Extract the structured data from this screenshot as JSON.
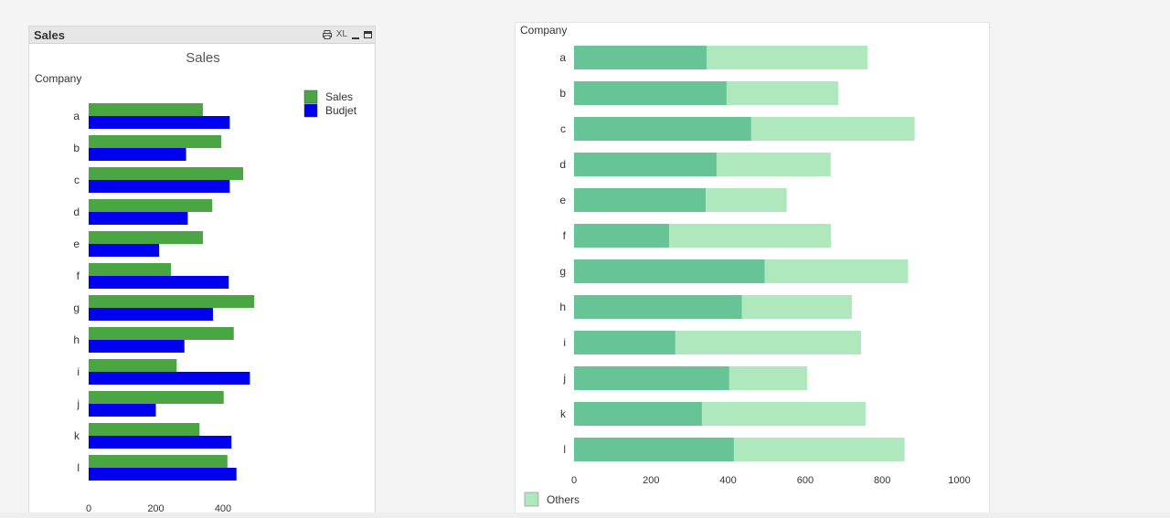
{
  "left_panel": {
    "caption": "Sales",
    "caption_icons": {
      "print": "print-icon",
      "xl": "XL",
      "minimize": "minimize-icon",
      "maximize": "maximize-icon"
    }
  },
  "colors": {
    "sales": "#4aa543",
    "budjet": "#0000f0",
    "company_value": "#66c497",
    "others": "#aee8bc"
  },
  "chart_data": [
    {
      "type": "bar",
      "orientation": "horizontal",
      "title": "Sales",
      "ylabel": "Company",
      "categories": [
        "a",
        "b",
        "c",
        "d",
        "e",
        "f",
        "g",
        "h",
        "i",
        "j",
        "k",
        "l"
      ],
      "series": [
        {
          "name": "Sales",
          "values": [
            340,
            395,
            460,
            368,
            340,
            245,
            493,
            432,
            262,
            402,
            330,
            413
          ]
        },
        {
          "name": "Budjet",
          "values": [
            420,
            290,
            420,
            295,
            210,
            417,
            370,
            285,
            480,
            200,
            425,
            440
          ]
        }
      ],
      "xticks": [
        0,
        200,
        400
      ],
      "xlim": [
        0,
        600
      ],
      "legend": "top-right",
      "grid": false
    },
    {
      "type": "bar",
      "orientation": "horizontal",
      "stacked": true,
      "title": "",
      "ylabel": "Company",
      "categories": [
        "a",
        "b",
        "c",
        "d",
        "e",
        "f",
        "g",
        "h",
        "i",
        "j",
        "k",
        "l"
      ],
      "series": [
        {
          "values": [
            344,
            396,
            460,
            370,
            342,
            247,
            495,
            436,
            263,
            403,
            332,
            415
          ]
        },
        {
          "name": "Others",
          "values": [
            418,
            290,
            424,
            296,
            210,
            420,
            372,
            285,
            482,
            202,
            425,
            443
          ]
        }
      ],
      "xticks": [
        0,
        200,
        400,
        600,
        800,
        1000
      ],
      "xlim": [
        0,
        1000
      ],
      "legend": "bottom-left",
      "grid": false
    }
  ]
}
